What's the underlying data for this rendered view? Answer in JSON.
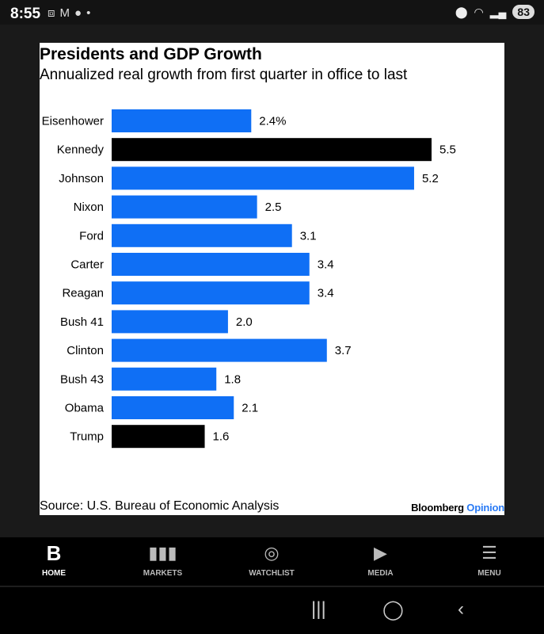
{
  "status_bar": {
    "time": "8:55",
    "battery": "83",
    "notification_icons": [
      "screenshot-icon",
      "gmail-icon",
      "app-icon",
      "dot-icon"
    ],
    "right_icons": [
      "location-icon",
      "wifi-icon",
      "signal-icon",
      "battery-icon"
    ]
  },
  "chart_data": {
    "type": "bar",
    "orientation": "horizontal",
    "title": "Presidents and GDP Growth",
    "subtitle": "Annualized real growth from first quarter in office to last",
    "categories": [
      "Eisenhower",
      "Kennedy",
      "Johnson",
      "Nixon",
      "Ford",
      "Carter",
      "Reagan",
      "Bush 41",
      "Clinton",
      "Bush 43",
      "Obama",
      "Trump"
    ],
    "values": [
      2.4,
      5.5,
      5.2,
      2.5,
      3.1,
      3.4,
      3.4,
      2.0,
      3.7,
      1.8,
      2.1,
      1.6
    ],
    "labels": [
      "2.4%",
      "5.5",
      "5.2",
      "2.5",
      "3.1",
      "3.4",
      "3.4",
      "2.0",
      "3.7",
      "1.8",
      "2.1",
      "1.6"
    ],
    "highlighted": [
      "Kennedy",
      "Trump"
    ],
    "colors": {
      "default": "#0f6ff5",
      "highlight": "#000000"
    },
    "xlim": [
      0,
      5.5
    ],
    "grid": false,
    "source": "Source: U.S. Bureau of Economic Analysis",
    "brand": {
      "name": "Bloomberg",
      "suffix": "Opinion",
      "suffix_color": "#2a7bf5"
    }
  },
  "bottom_nav": [
    {
      "label": "HOME",
      "icon": "bloomberg-b-icon",
      "active": true
    },
    {
      "label": "MARKETS",
      "icon": "bar-chart-icon"
    },
    {
      "label": "WATCHLIST",
      "icon": "eye-icon"
    },
    {
      "label": "MEDIA",
      "icon": "play-icon"
    },
    {
      "label": "MENU",
      "icon": "menu-icon"
    }
  ]
}
